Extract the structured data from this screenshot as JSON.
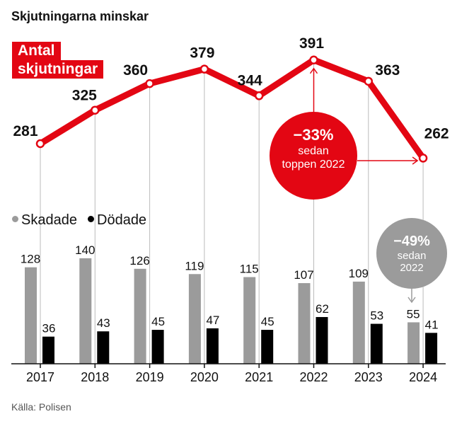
{
  "title": "Skjutningarna minskar",
  "source": "Källa: Polisen",
  "line_label": [
    "Antal",
    "skjutningar"
  ],
  "legend": {
    "injured": {
      "label": "Skadade",
      "color": "#9b9b9b"
    },
    "killed": {
      "label": "Dödade",
      "color": "#000000"
    }
  },
  "annotations": {
    "peak": {
      "big": "−33%",
      "lines": [
        "sedan",
        "toppen 2022"
      ],
      "color": "#e30613"
    },
    "killed": {
      "big": "−49%",
      "lines": [
        "sedan",
        "2022"
      ],
      "color": "#9b9b9b"
    }
  },
  "chart_data": {
    "type": "line+bar",
    "categories": [
      "2017",
      "2018",
      "2019",
      "2020",
      "2021",
      "2022",
      "2023",
      "2024"
    ],
    "line": {
      "name": "Antal skjutningar",
      "values": [
        281,
        325,
        360,
        379,
        344,
        391,
        363,
        262
      ],
      "color": "#e30613"
    },
    "series": [
      {
        "name": "Skadade",
        "values": [
          128,
          140,
          126,
          119,
          115,
          107,
          109,
          55
        ],
        "color": "#9b9b9b"
      },
      {
        "name": "Dödade",
        "values": [
          36,
          43,
          45,
          47,
          45,
          62,
          53,
          41
        ],
        "color": "#000000"
      }
    ]
  }
}
